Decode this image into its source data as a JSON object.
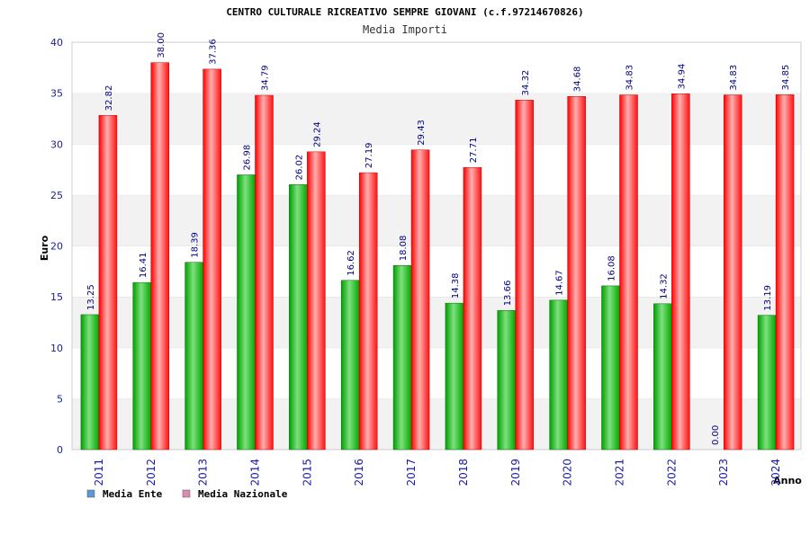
{
  "chart_data": {
    "type": "bar",
    "title": "CENTRO CULTURALE RICREATIVO SEMPRE GIOVANI (c.f.97214670826)",
    "subtitle": "Media Importi",
    "xlabel": "Anno",
    "ylabel": "Euro",
    "ylim": [
      0,
      40
    ],
    "yticks": [
      0,
      5,
      10,
      15,
      20,
      25,
      30,
      35,
      40
    ],
    "grid": "horizontal alternating bands",
    "legend_position": "bottom-left",
    "categories": [
      "2011",
      "2012",
      "2013",
      "2014",
      "2015",
      "2016",
      "2017",
      "2018",
      "2019",
      "2020",
      "2021",
      "2022",
      "2023",
      "2024"
    ],
    "series": [
      {
        "name": "Media Ente",
        "color": "#00b000",
        "legend_color": "#5b9bd5",
        "values": [
          13.25,
          16.41,
          18.39,
          26.98,
          26.02,
          16.62,
          18.08,
          14.38,
          13.66,
          14.67,
          16.08,
          14.32,
          0.0,
          13.19
        ],
        "labels": [
          "13.25",
          "16.41",
          "18.39",
          "26.98",
          "26.02",
          "16.62",
          "18.08",
          "14.38",
          "13.66",
          "14.67",
          "16.08",
          "14.32",
          "0.00",
          "13.19"
        ]
      },
      {
        "name": "Media Nazionale",
        "color": "#ff1a1a",
        "legend_color": "#d98cb3",
        "values": [
          32.82,
          38.0,
          37.36,
          34.79,
          29.24,
          27.19,
          29.43,
          27.71,
          34.32,
          34.68,
          34.83,
          34.94,
          34.83,
          34.85
        ],
        "labels": [
          "32.82",
          "38.00",
          "37.36",
          "34.79",
          "29.24",
          "27.19",
          "29.43",
          "27.71",
          "34.32",
          "34.68",
          "34.83",
          "34.94",
          "34.83",
          "34.85"
        ]
      }
    ]
  }
}
